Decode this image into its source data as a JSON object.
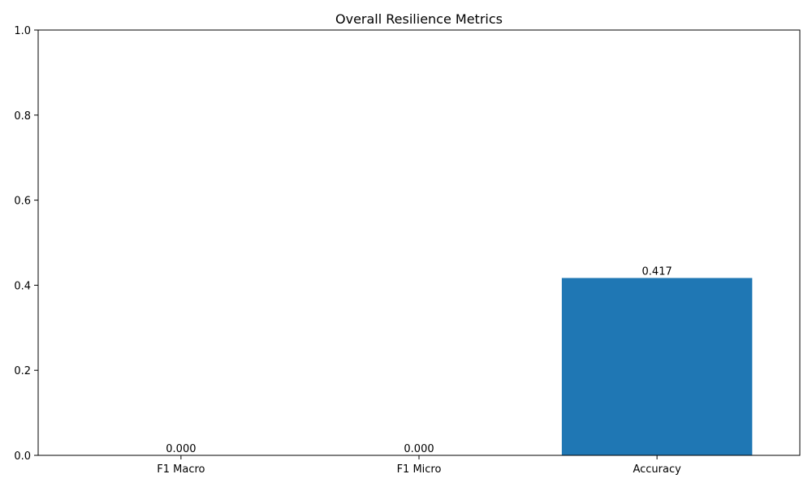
{
  "chart_data": {
    "type": "bar",
    "title": "Overall Resilience Metrics",
    "xlabel": "",
    "ylabel": "",
    "categories": [
      "F1 Macro",
      "F1 Micro",
      "Accuracy"
    ],
    "values": [
      0.0,
      0.0,
      0.417
    ],
    "value_labels": [
      "0.000",
      "0.000",
      "0.417"
    ],
    "ylim": [
      0,
      1
    ],
    "yticks": [
      0.0,
      0.2,
      0.4,
      0.6,
      0.8,
      1.0
    ],
    "ytick_labels": [
      "0.0",
      "0.2",
      "0.4",
      "0.6",
      "0.8",
      "1.0"
    ],
    "grid": false,
    "bar_color": "#1f77b4"
  }
}
